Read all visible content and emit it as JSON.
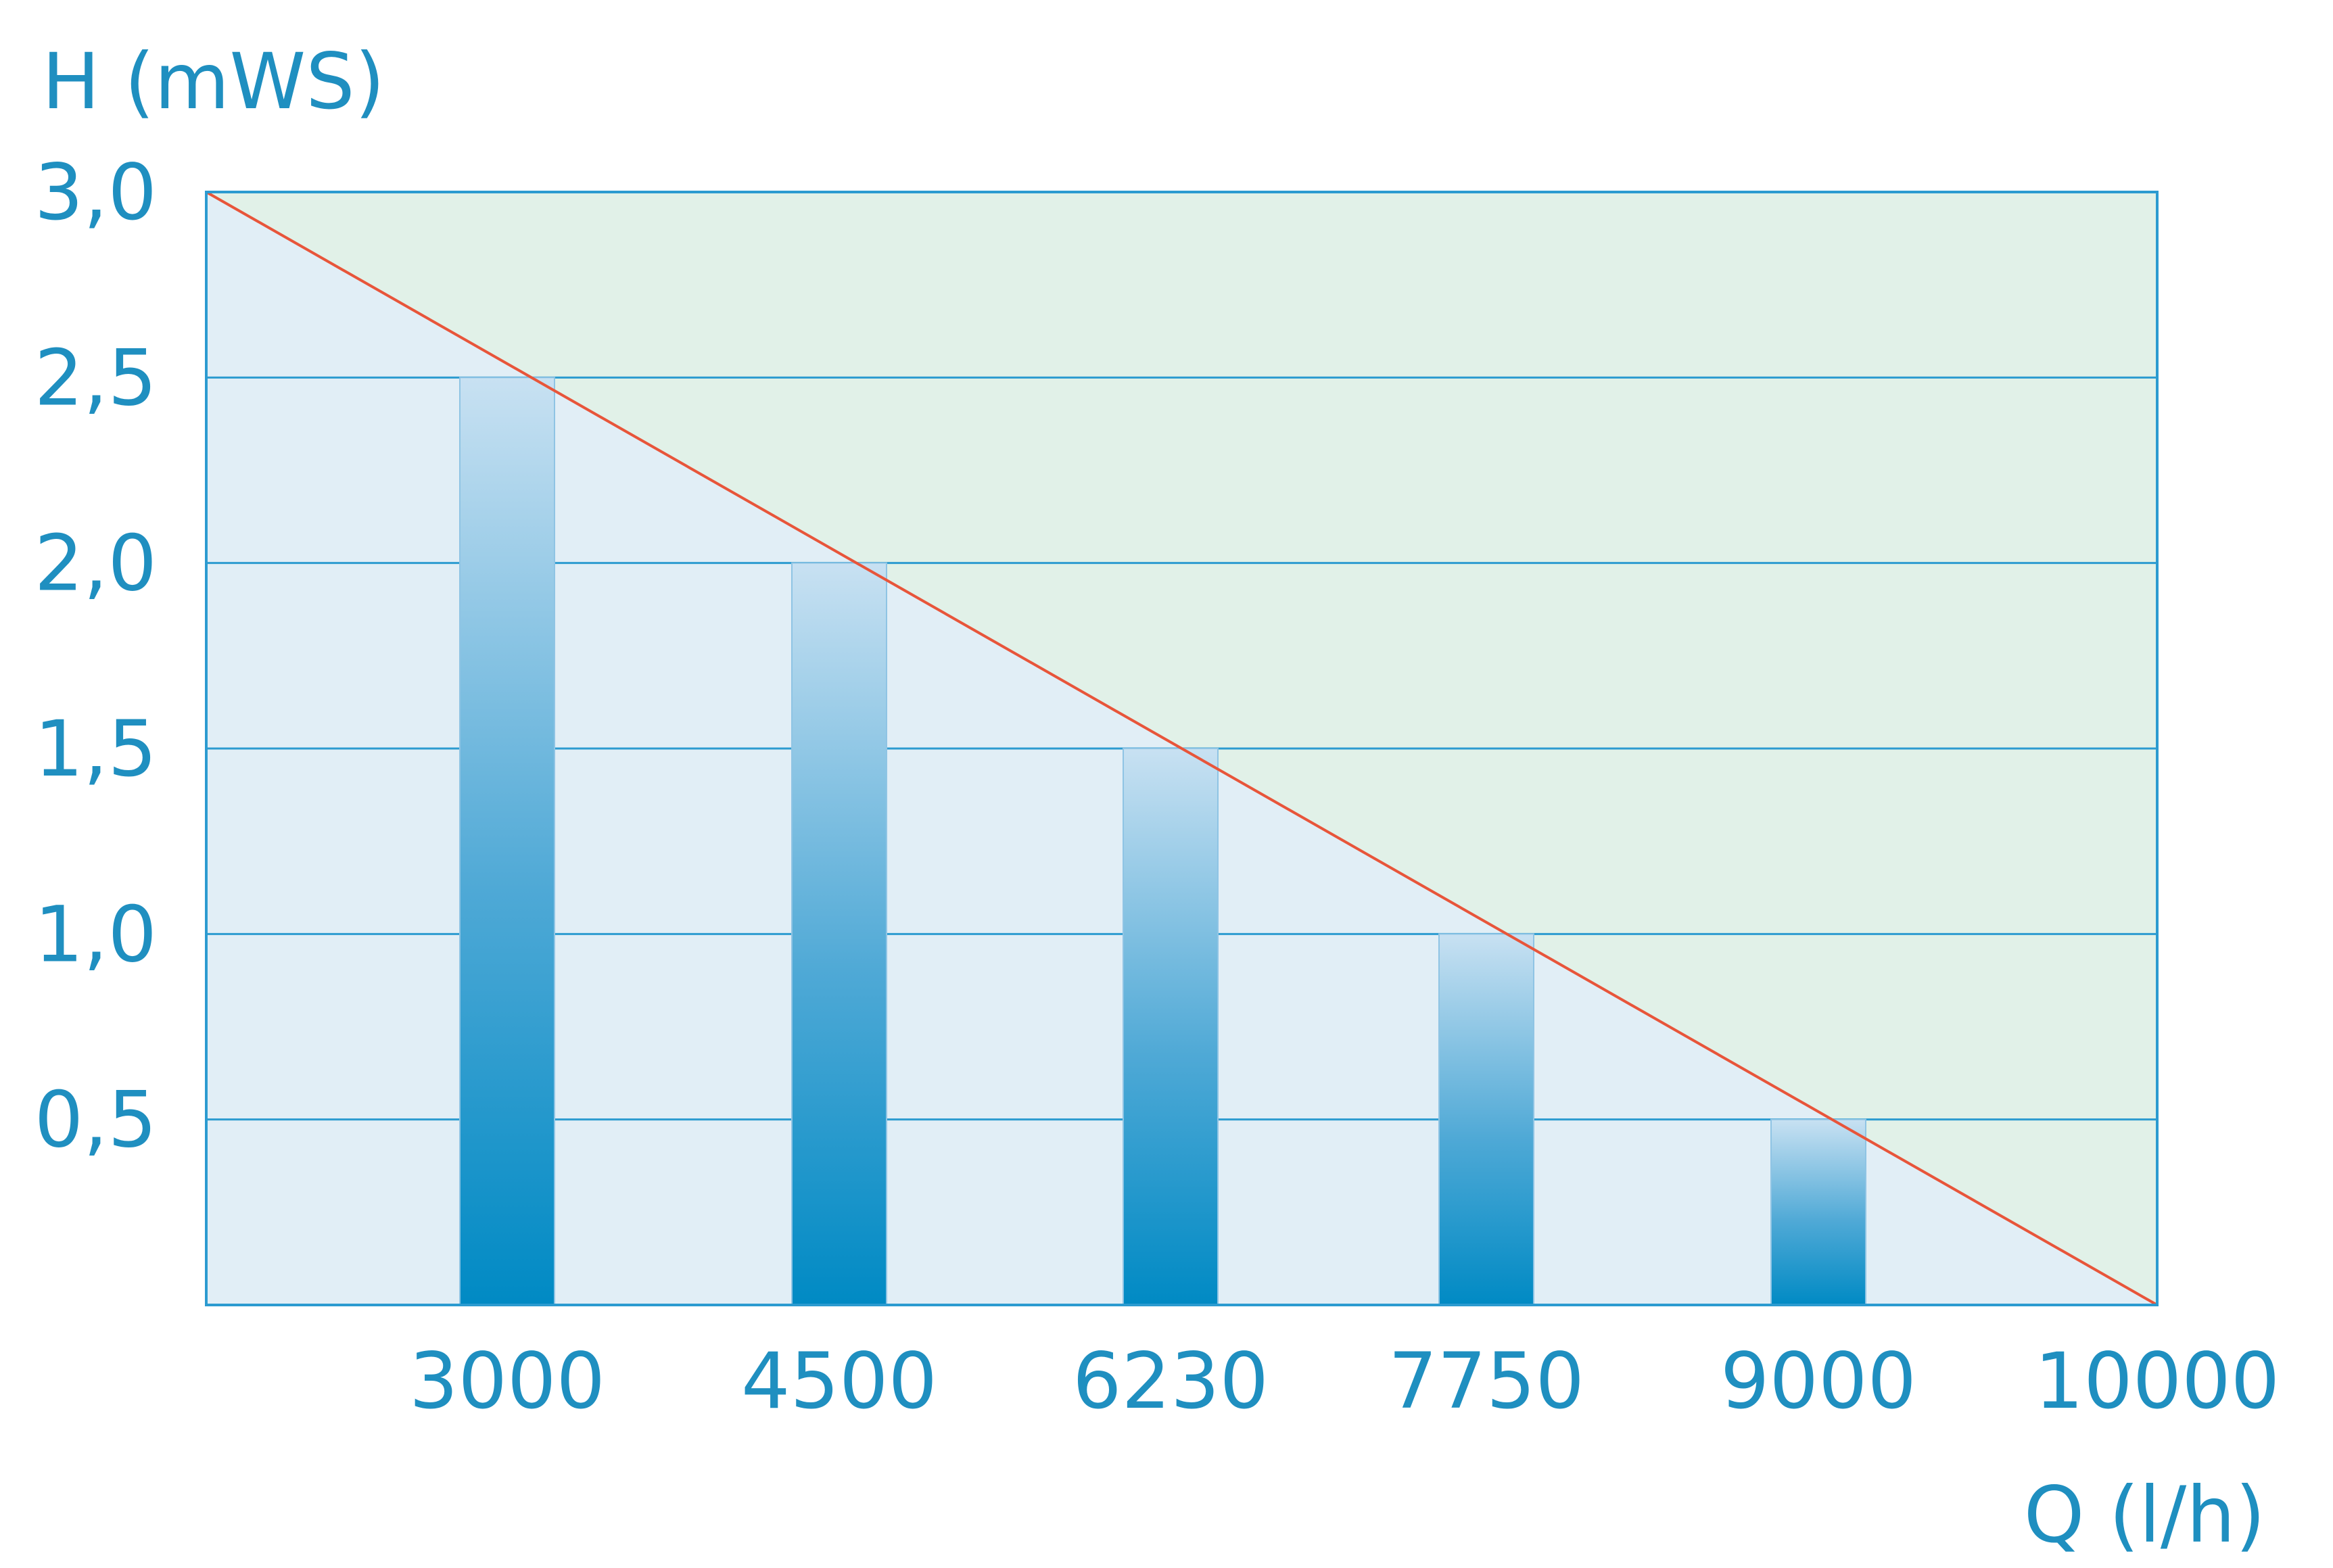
{
  "chart_data": {
    "type": "bar",
    "title": "",
    "ylabel": "H (mWS)",
    "xlabel": "Q (l/h)",
    "categories": [
      "3000",
      "4500",
      "6230",
      "7750",
      "9000"
    ],
    "x_ticks": [
      "3000",
      "4500",
      "6230",
      "7750",
      "9000",
      "10000"
    ],
    "values": [
      2.5,
      2.0,
      1.5,
      1.0,
      0.5
    ],
    "y_ticks": [
      "0,5",
      "1,0",
      "1,5",
      "2,0",
      "2,5",
      "3,0"
    ],
    "ylim": [
      0,
      3.0
    ],
    "grid": true,
    "legend": "none",
    "line": {
      "from": [
        0,
        3.0
      ],
      "to": [
        "10000",
        0
      ]
    },
    "colors": {
      "text": "#1f8fc0",
      "frame": "#2c9bd0",
      "gridline": "#2c9bd0",
      "line": "#e8553a",
      "region_below": "#e1eef6",
      "region_above": "#e1f1e8",
      "bar_top": "#c8e1f2",
      "bar_mid": "#4fa9d6",
      "bar_bottom": "#008ac4"
    }
  }
}
